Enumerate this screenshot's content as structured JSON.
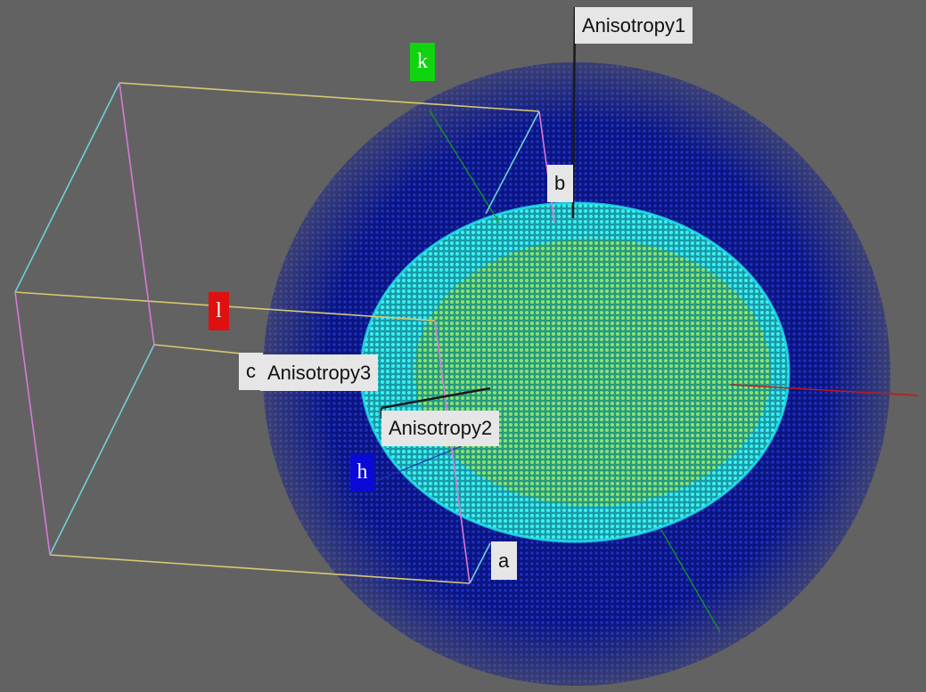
{
  "scene": {
    "background": "#626262",
    "axes": [
      {
        "name": "k",
        "color": "#11d411"
      },
      {
        "name": "l",
        "color": "#e01010"
      },
      {
        "name": "h",
        "color": "#0a0ad8"
      }
    ],
    "box_edge_colors": {
      "a_axis": "#d8c870",
      "b_axis": "#70d0d8",
      "c_axis": "#d878d8"
    },
    "outer_shell_color": "#0b1690",
    "inner_shell_colors": [
      "#1ee0e8",
      "#5fe8a0",
      "#b8e030"
    ],
    "labels": {
      "anisotropy1": "Anisotropy1",
      "anisotropy2": "Anisotropy2",
      "anisotropy3": "Anisotropy3",
      "a": "a",
      "b": "b",
      "c": "c"
    }
  }
}
